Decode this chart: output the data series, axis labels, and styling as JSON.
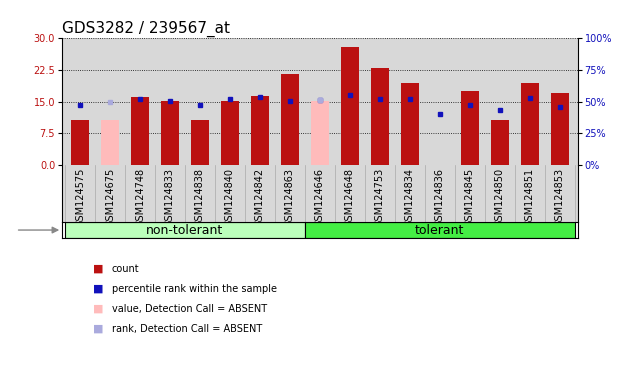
{
  "title": "GDS3282 / 239567_at",
  "specimens": [
    "GSM124575",
    "GSM124675",
    "GSM124748",
    "GSM124833",
    "GSM124838",
    "GSM124840",
    "GSM124842",
    "GSM124863",
    "GSM124646",
    "GSM124648",
    "GSM124753",
    "GSM124834",
    "GSM124836",
    "GSM124845",
    "GSM124850",
    "GSM124851",
    "GSM124853"
  ],
  "groups": [
    {
      "label": "non-tolerant",
      "start": 0,
      "end": 8,
      "color": "#bbffbb"
    },
    {
      "label": "tolerant",
      "start": 8,
      "end": 17,
      "color": "#44ee44"
    }
  ],
  "count_values": [
    10.5,
    null,
    16.0,
    15.2,
    10.5,
    15.2,
    16.2,
    21.5,
    null,
    28.0,
    23.0,
    19.5,
    null,
    17.5,
    10.5,
    19.5,
    17.0
  ],
  "absent_value": [
    null,
    10.5,
    null,
    null,
    null,
    null,
    null,
    null,
    15.2,
    null,
    null,
    null,
    null,
    null,
    null,
    null,
    null
  ],
  "percentile_rank": [
    47.0,
    null,
    52.0,
    50.5,
    47.0,
    52.0,
    53.5,
    50.5,
    51.5,
    55.0,
    52.0,
    52.0,
    40.0,
    47.0,
    43.0,
    53.0,
    46.0
  ],
  "absent_rank": [
    null,
    50.0,
    null,
    null,
    null,
    null,
    null,
    null,
    51.5,
    null,
    null,
    null,
    null,
    null,
    null,
    null,
    null
  ],
  "ylim_left": [
    0,
    30
  ],
  "ylim_right": [
    0,
    100
  ],
  "yticks_left": [
    0,
    7.5,
    15,
    22.5,
    30
  ],
  "yticks_right": [
    0,
    25,
    50,
    75,
    100
  ],
  "bar_color_red": "#bb1111",
  "bar_color_pink": "#ffbbbb",
  "dot_color_blue": "#1111bb",
  "dot_color_lightblue": "#aaaadd",
  "group_label_fontsize": 9,
  "tick_fontsize": 7,
  "title_fontsize": 11,
  "bar_width": 0.6,
  "plot_bg": "#d8d8d8",
  "white": "#ffffff"
}
